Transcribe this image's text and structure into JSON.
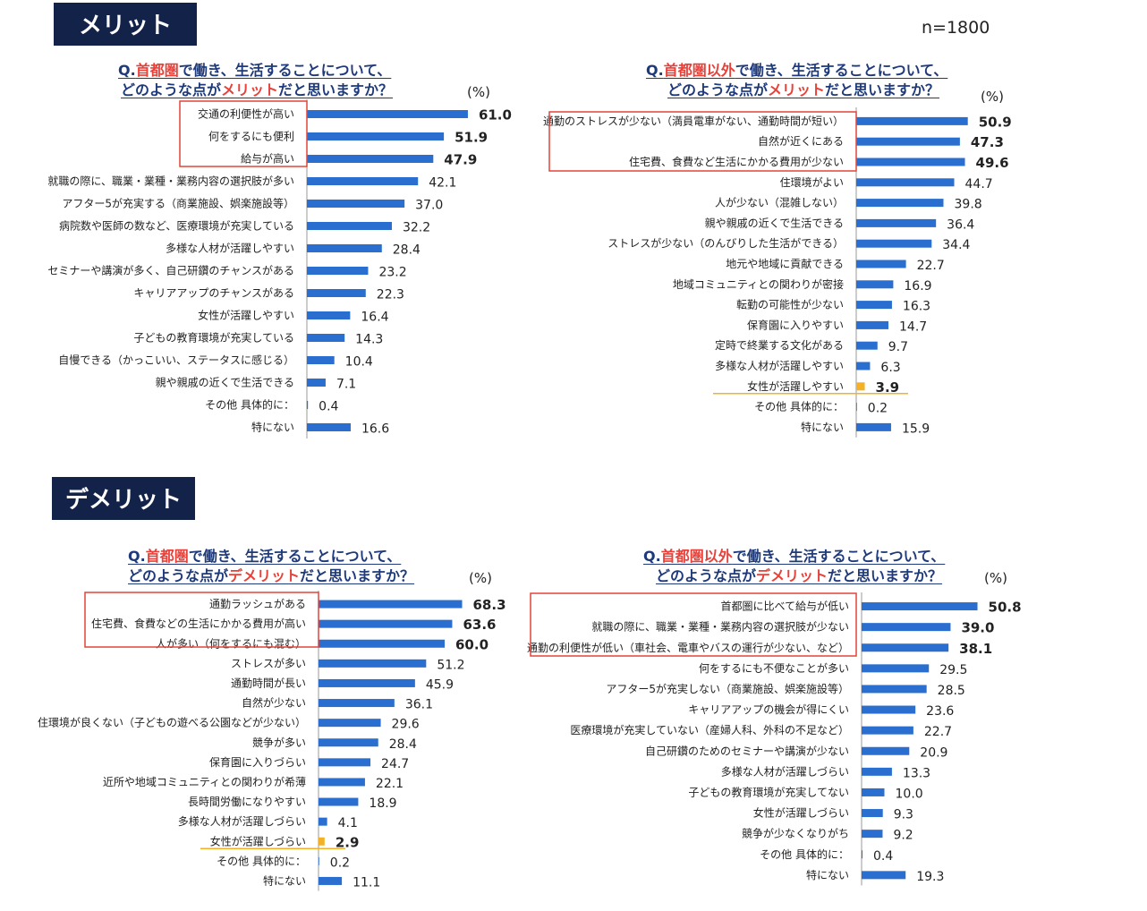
{
  "header": {
    "merit_label": "メリット",
    "demerit_label": "デメリット",
    "sample": "n=1800"
  },
  "colors": {
    "bar": "#2a6fd0",
    "highlight_bar": "#f2b126",
    "badge_bg": "#132249",
    "frame": "#e2453a",
    "title_accent": "#e8413a",
    "title_text": "#1f3a7a"
  },
  "chart_data": [
    {
      "type": "bar",
      "orientation": "horizontal",
      "id": "merit_capital",
      "title_parts": [
        "Q.",
        "首都圏",
        "で働き、生活することについて、",
        "どのような点が",
        "メリット",
        "だと思いますか？"
      ],
      "unit": "(%)",
      "categories": [
        "交通の利便性が高い",
        "何をするにも便利",
        "給与が高い",
        "就職の際に、職業・業種・業務内容の選択肢が多い",
        "アフター5が充実する（商業施設、娯楽施設等）",
        "病院数や医師の数など、医療環境が充実している",
        "多様な人材が活躍しやすい",
        "セミナーや講演が多く、自己研鑽のチャンスがある",
        "キャリアアップのチャンスがある",
        "女性が活躍しやすい",
        "子どもの教育環境が充実している",
        "自慢できる（かっこいい、ステータスに感じる）",
        "親や親戚の近くで生活できる",
        "その他 具体的に：",
        "特にない"
      ],
      "values": [
        61.0,
        51.9,
        47.9,
        42.1,
        37.0,
        32.2,
        28.4,
        23.2,
        22.3,
        16.4,
        14.3,
        10.4,
        7.1,
        0.4,
        16.6
      ],
      "labels": [
        "61.0",
        "51.9",
        "47.9",
        "42.1",
        "37.0",
        "32.2",
        "28.4",
        "23.2",
        "22.3",
        "16.4",
        "14.3",
        "10.4",
        "7.1",
        "0.4",
        "16.6"
      ],
      "bold": [
        0,
        1,
        2
      ],
      "highlight": [],
      "boxed": [
        0,
        1,
        2
      ]
    },
    {
      "type": "bar",
      "orientation": "horizontal",
      "id": "merit_non_capital",
      "title_parts": [
        "Q.",
        "首都圏以外",
        "で働き、生活することについて、",
        "どのような点が",
        "メリット",
        "だと思いますか？"
      ],
      "unit": "(%)",
      "categories": [
        "通勤のストレスが少ない（満員電車がない、通勤時間が短い）",
        "自然が近くにある",
        "住宅費、食費など生活にかかる費用が少ない",
        "住環境がよい",
        "人が少ない（混雑しない）",
        "親や親戚の近くで生活できる",
        "ストレスが少ない（のんびりした生活ができる）",
        "地元や地域に貢献できる",
        "地域コミュニティとの関わりが密接",
        "転勤の可能性が少ない",
        "保育園に入りやすい",
        "定時で終業する文化がある",
        "多様な人材が活躍しやすい",
        "女性が活躍しやすい",
        "その他 具体的に：",
        "特にない"
      ],
      "values": [
        50.9,
        47.3,
        49.6,
        44.7,
        39.8,
        36.4,
        34.4,
        22.7,
        16.9,
        16.3,
        14.7,
        9.7,
        6.3,
        3.9,
        0.2,
        15.9
      ],
      "labels": [
        "50.9",
        "47.3",
        "49.6",
        "44.7",
        "39.8",
        "36.4",
        "34.4",
        "22.7",
        "16.9",
        "16.3",
        "14.7",
        "9.7",
        "6.3",
        "3.9",
        "0.2",
        "15.9"
      ],
      "bold": [
        0,
        1,
        2,
        13
      ],
      "highlight": [
        13
      ],
      "boxed": [
        0,
        1,
        2
      ]
    },
    {
      "type": "bar",
      "orientation": "horizontal",
      "id": "demerit_capital",
      "title_parts": [
        "Q.",
        "首都圏",
        "で働き、生活することについて、",
        "どのような点が",
        "デメリット",
        "だと思いますか？"
      ],
      "unit": "(%)",
      "categories": [
        "通勤ラッシュがある",
        "住宅費、食費などの生活にかかる費用が高い",
        "人が多い（何をするにも混む）",
        "ストレスが多い",
        "通勤時間が長い",
        "自然が少ない",
        "住環境が良くない（子どもの遊べる公園などが少ない）",
        "競争が多い",
        "保育園に入りづらい",
        "近所や地域コミュニティとの関わりが希薄",
        "長時間労働になりやすい",
        "多様な人材が活躍しづらい",
        "女性が活躍しづらい",
        "その他 具体的に：",
        "特にない"
      ],
      "values": [
        68.3,
        63.6,
        60.0,
        51.2,
        45.9,
        36.1,
        29.6,
        28.4,
        24.7,
        22.1,
        18.9,
        4.1,
        2.9,
        0.2,
        11.1
      ],
      "labels": [
        "68.3",
        "63.6",
        "60.0",
        "51.2",
        "45.9",
        "36.1",
        "29.6",
        "28.4",
        "24.7",
        "22.1",
        "18.9",
        "4.1",
        "2.9",
        "0.2",
        "11.1"
      ],
      "bold": [
        0,
        1,
        2,
        12
      ],
      "highlight": [
        12
      ],
      "boxed": [
        0,
        1,
        2
      ]
    },
    {
      "type": "bar",
      "orientation": "horizontal",
      "id": "demerit_non_capital",
      "title_parts": [
        "Q.",
        "首都圏以外",
        "で働き、生活することについて、",
        "どのような点が",
        "デメリット",
        "だと思いますか？"
      ],
      "unit": "(%)",
      "categories": [
        "首都圏に比べて給与が低い",
        "就職の際に、職業・業種・業務内容の選択肢が少ない",
        "通勤の利便性が低い（車社会、電車やバスの運行が少ない、など）",
        "何をするにも不便なことが多い",
        "アフター5が充実しない（商業施設、娯楽施設等）",
        "キャリアアップの機会が得にくい",
        "医療環境が充実していない（産婦人科、外科の不足など）",
        "自己研鑽のためのセミナーや講演が少ない",
        "多様な人材が活躍しづらい",
        "子どもの教育環境が充実してない",
        "女性が活躍しづらい",
        "競争が少なくなりがち",
        "その他 具体的に：",
        "特にない"
      ],
      "values": [
        50.8,
        39.0,
        38.1,
        29.5,
        28.5,
        23.6,
        22.7,
        20.9,
        13.3,
        10.0,
        9.3,
        9.2,
        0.4,
        19.3
      ],
      "labels": [
        "50.8",
        "39.0",
        "38.1",
        "29.5",
        "28.5",
        "23.6",
        "22.7",
        "20.9",
        "13.3",
        "10.0",
        "9.3",
        "9.2",
        "0.4",
        "19.3"
      ],
      "bold": [
        0,
        1,
        2
      ],
      "highlight": [],
      "boxed": [
        0,
        1,
        2
      ]
    }
  ]
}
